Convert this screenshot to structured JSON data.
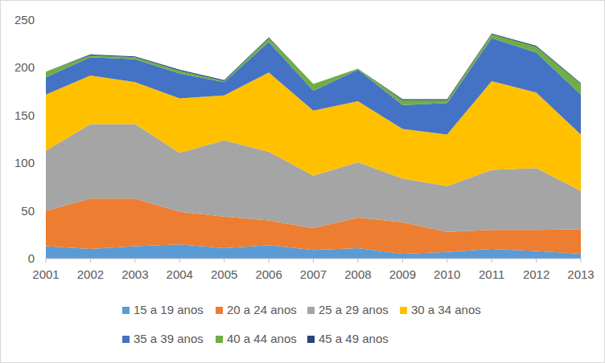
{
  "chart_data": {
    "type": "area",
    "stacked": true,
    "grid": false,
    "legend": "bottom",
    "x": [
      2001,
      2002,
      2003,
      2004,
      2005,
      2006,
      2007,
      2008,
      2009,
      2010,
      2011,
      2012,
      2013
    ],
    "xlim": [
      2001,
      2013
    ],
    "xticks": [
      2001,
      2002,
      2003,
      2004,
      2005,
      2006,
      2007,
      2008,
      2009,
      2010,
      2011,
      2012,
      2013
    ],
    "ylim": [
      0,
      250
    ],
    "yticks": [
      0,
      50,
      100,
      150,
      200,
      250
    ],
    "series": [
      {
        "name": "15 a 19 anos",
        "color": "#5B9BD5",
        "values": [
          13,
          10,
          13,
          15,
          11,
          14,
          9,
          11,
          5,
          7,
          10,
          8,
          5
        ]
      },
      {
        "name": "20 a 24 anos",
        "color": "#ED7D31",
        "values": [
          37,
          53,
          50,
          34,
          33,
          26,
          23,
          32,
          33,
          21,
          20,
          22,
          26
        ]
      },
      {
        "name": "25 a 29 anos",
        "color": "#A5A5A5",
        "values": [
          63,
          78,
          78,
          62,
          80,
          72,
          55,
          58,
          46,
          48,
          63,
          65,
          40
        ]
      },
      {
        "name": "30 a 34 anos",
        "color": "#FFC000",
        "values": [
          59,
          51,
          44,
          57,
          47,
          83,
          68,
          64,
          52,
          54,
          93,
          79,
          59
        ]
      },
      {
        "name": "35 a 39 anos",
        "color": "#4472C4",
        "values": [
          18,
          19,
          24,
          26,
          14,
          32,
          21,
          33,
          25,
          33,
          45,
          42,
          42
        ]
      },
      {
        "name": "40 a 44 anos",
        "color": "#70AD47",
        "values": [
          6,
          2,
          2,
          3,
          1,
          4,
          7,
          1,
          5,
          3,
          4,
          6,
          11
        ]
      },
      {
        "name": "45 a 49 anos",
        "color": "#264478",
        "values": [
          0,
          1,
          1,
          1,
          1,
          1,
          0,
          0,
          1,
          1,
          1,
          1,
          1
        ]
      }
    ]
  }
}
